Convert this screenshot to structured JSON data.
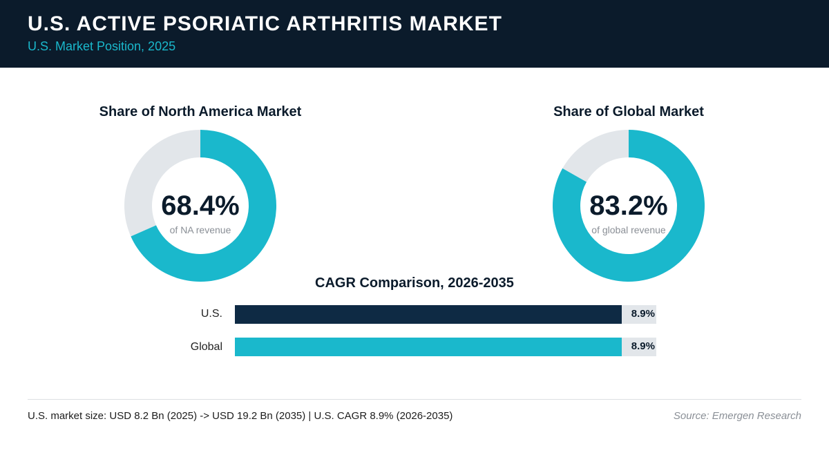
{
  "header": {
    "title": "U.S. ACTIVE PSORIATIC ARTHRITIS MARKET",
    "subtitle": "U.S. Market Position, 2025"
  },
  "colors": {
    "navy": "#0b1b2b",
    "teal": "#1ab8cc",
    "track": "#e2e6ea",
    "us_bar": "#0e2a44"
  },
  "chart_data": [
    {
      "type": "pie",
      "variant": "donut",
      "title": "Share of North America Market",
      "value_label": "68.4%",
      "caption": "of NA revenue",
      "values": [
        68.4,
        31.6
      ],
      "colors": [
        "#1ab8cc",
        "#e2e6ea"
      ]
    },
    {
      "type": "pie",
      "variant": "donut",
      "title": "Share of Global Market",
      "value_label": "83.2%",
      "caption": "of global revenue",
      "values": [
        83.2,
        16.8
      ],
      "colors": [
        "#1ab8cc",
        "#e2e6ea"
      ]
    },
    {
      "type": "bar",
      "orientation": "horizontal",
      "title": "CAGR Comparison, 2026-2035",
      "categories": [
        "U.S.",
        "Global"
      ],
      "values": [
        8.9,
        8.9
      ],
      "value_labels": [
        "8.9%",
        "8.9%"
      ],
      "colors": [
        "#0e2a44",
        "#1ab8cc"
      ],
      "xlim": [
        0,
        9.7
      ]
    }
  ],
  "footer": {
    "note": "U.S. market size: USD 8.2 Bn (2025) -> USD 19.2 Bn (2035)  |  U.S. CAGR 8.9% (2026-2035)",
    "source": "Source: Emergen Research"
  }
}
